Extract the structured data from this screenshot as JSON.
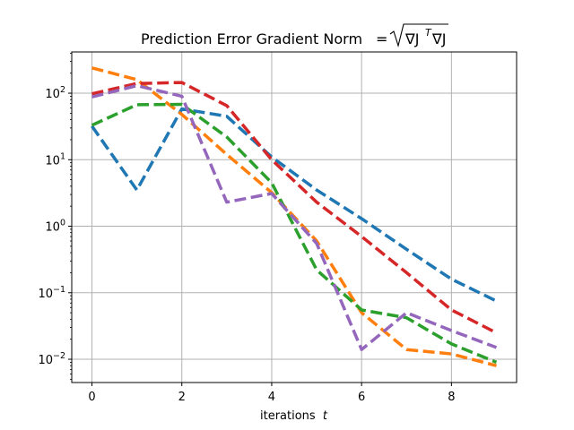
{
  "chart_data": {
    "type": "line",
    "title": "Prediction Error Gradient Norm",
    "title_math": "= √(∇J^T∇J)",
    "xlabel": "iterations",
    "xlabel_var": "t",
    "ylabel": "",
    "y_scale": "log",
    "xlim": [
      -0.45,
      9.45
    ],
    "ylim_log10": [
      -2.35,
      2.62
    ],
    "grid": true,
    "line_style": "dashed",
    "x_ticks": [
      0,
      2,
      4,
      6,
      8
    ],
    "x_tick_labels": [
      "0",
      "2",
      "4",
      "6",
      "8"
    ],
    "y_ticks": [
      0.01,
      0.1,
      1,
      10,
      100
    ],
    "y_tick_labels": [
      {
        "base": "10",
        "exp": "−2"
      },
      {
        "base": "10",
        "exp": "−1"
      },
      {
        "base": "10",
        "exp": "0"
      },
      {
        "base": "10",
        "exp": "1"
      },
      {
        "base": "10",
        "exp": "2"
      }
    ],
    "x": [
      0,
      1,
      2,
      3,
      4,
      5,
      6,
      7,
      8,
      9
    ],
    "series": [
      {
        "color": "#1f77b4",
        "values": [
          32,
          3.5,
          58,
          45,
          11,
          3.5,
          1.3,
          0.45,
          0.16,
          0.075
        ]
      },
      {
        "color": "#ff7f0e",
        "values": [
          240,
          160,
          48,
          12,
          3.2,
          0.6,
          0.05,
          0.014,
          0.012,
          0.008
        ]
      },
      {
        "color": "#2ca02c",
        "values": [
          33,
          67,
          68,
          22,
          4.5,
          0.22,
          0.055,
          0.042,
          0.017,
          0.009
        ]
      },
      {
        "color": "#d62728",
        "values": [
          98,
          140,
          145,
          65,
          10,
          2.3,
          0.7,
          0.2,
          0.055,
          0.025
        ]
      },
      {
        "color": "#9467bd",
        "values": [
          88,
          130,
          90,
          2.3,
          3.1,
          0.55,
          0.014,
          0.05,
          0.027,
          0.015
        ]
      }
    ]
  }
}
